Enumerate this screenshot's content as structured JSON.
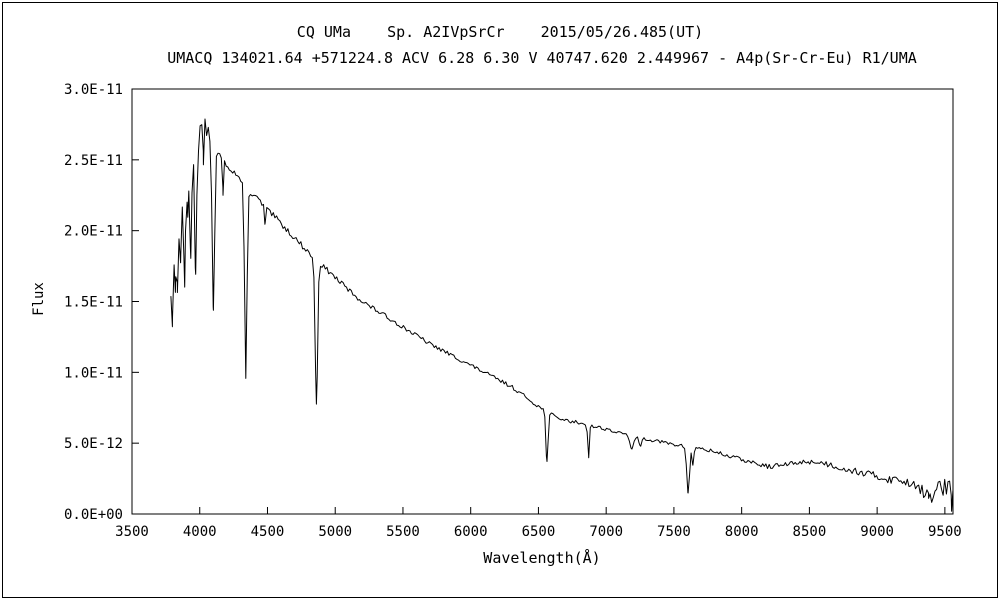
{
  "window": {
    "background": "#ffffff",
    "border_color": "#000000"
  },
  "chart_data": {
    "type": "line",
    "title": "CQ UMa    Sp. A2IVpSrCr    2015/05/26.485(UT)",
    "subtitle": "UMACQ 134021.64 +571224.8 ACV 6.28 6.30 V 40747.620 2.449967 - A4p(Sr-Cr-Eu) R1/UMA",
    "xlabel": "Wavelength(Å)",
    "ylabel": "Flux",
    "grid": false,
    "legend": false,
    "line_color": "#000000",
    "axis_color": "#000000",
    "xlim": [
      3500,
      9560
    ],
    "x_ticks": [
      3500,
      4000,
      4500,
      5000,
      5500,
      6000,
      6500,
      7000,
      7500,
      8000,
      8500,
      9000,
      9500
    ],
    "flux_value_unit": "1e-12",
    "ylim": [
      0,
      30
    ],
    "y_ticks": [
      {
        "value": 0,
        "label": "0.0E+00"
      },
      {
        "value": 5,
        "label": "5.0E-12"
      },
      {
        "value": 10,
        "label": "1.0E-11"
      },
      {
        "value": 15,
        "label": "1.5E-11"
      },
      {
        "value": 20,
        "label": "2.0E-11"
      },
      {
        "value": 25,
        "label": "2.5E-11"
      },
      {
        "value": 30,
        "label": "3.0E-11"
      }
    ],
    "wavelength_range": [
      3787,
      9560
    ],
    "sample_step": 12,
    "noise_seed": 13,
    "continuum": [
      [
        3787,
        16.2
      ],
      [
        3810,
        18.5
      ],
      [
        3840,
        20.0
      ],
      [
        3870,
        21.5
      ],
      [
        3900,
        23.0
      ],
      [
        3930,
        24.0
      ],
      [
        3960,
        25.0
      ],
      [
        3990,
        26.5
      ],
      [
        4020,
        27.6
      ],
      [
        4050,
        27.2
      ],
      [
        4100,
        26.2
      ],
      [
        4150,
        25.2
      ],
      [
        4200,
        24.7
      ],
      [
        4250,
        24.2
      ],
      [
        4300,
        23.6
      ],
      [
        4350,
        23.0
      ],
      [
        4400,
        22.5
      ],
      [
        4450,
        22.0
      ],
      [
        4500,
        21.4
      ],
      [
        4550,
        21.0
      ],
      [
        4600,
        20.5
      ],
      [
        4650,
        20.0
      ],
      [
        4700,
        19.5
      ],
      [
        4750,
        19.0
      ],
      [
        4800,
        18.5
      ],
      [
        4860,
        17.9
      ],
      [
        4920,
        17.4
      ],
      [
        5000,
        16.7
      ],
      [
        5100,
        15.8
      ],
      [
        5200,
        15.0
      ],
      [
        5300,
        14.4
      ],
      [
        5400,
        13.8
      ],
      [
        5500,
        13.2
      ],
      [
        5600,
        12.6
      ],
      [
        5700,
        12.0
      ],
      [
        5800,
        11.5
      ],
      [
        5900,
        11.0
      ],
      [
        6000,
        10.5
      ],
      [
        6100,
        10.0
      ],
      [
        6200,
        9.5
      ],
      [
        6300,
        9.0
      ],
      [
        6400,
        8.3
      ],
      [
        6500,
        7.6
      ],
      [
        6560,
        7.2
      ],
      [
        6620,
        6.9
      ],
      [
        6700,
        6.6
      ],
      [
        6800,
        6.45
      ],
      [
        6900,
        6.2
      ],
      [
        7000,
        6.0
      ],
      [
        7100,
        5.7
      ],
      [
        7200,
        5.5
      ],
      [
        7300,
        5.3
      ],
      [
        7400,
        5.1
      ],
      [
        7500,
        4.9
      ],
      [
        7600,
        4.75
      ],
      [
        7700,
        4.6
      ],
      [
        7800,
        4.4
      ],
      [
        7900,
        4.1
      ],
      [
        8000,
        3.85
      ],
      [
        8100,
        3.55
      ],
      [
        8200,
        3.35
      ],
      [
        8300,
        3.45
      ],
      [
        8400,
        3.6
      ],
      [
        8500,
        3.7
      ],
      [
        8600,
        3.6
      ],
      [
        8700,
        3.35
      ],
      [
        8800,
        3.1
      ],
      [
        8900,
        2.9
      ],
      [
        9000,
        2.65
      ],
      [
        9100,
        2.45
      ],
      [
        9200,
        2.3
      ],
      [
        9300,
        2.15
      ],
      [
        9400,
        2.05
      ],
      [
        9500,
        1.9
      ],
      [
        9560,
        1.6
      ]
    ],
    "absorption_lines": [
      {
        "center": 3798,
        "sigma": 5,
        "depth": 4.0
      },
      {
        "center": 3820,
        "sigma": 4,
        "depth": 2.5
      },
      {
        "center": 3835,
        "sigma": 5,
        "depth": 4.2
      },
      {
        "center": 3860,
        "sigma": 4,
        "depth": 3.0
      },
      {
        "center": 3889,
        "sigma": 6,
        "depth": 6.0
      },
      {
        "center": 3912,
        "sigma": 4,
        "depth": 2.8
      },
      {
        "center": 3934,
        "sigma": 6,
        "depth": 5.5
      },
      {
        "center": 3970,
        "sigma": 7,
        "depth": 8.0
      },
      {
        "center": 4026,
        "sigma": 4,
        "depth": 2.5
      },
      {
        "center": 4101,
        "sigma": 9,
        "depth": 12.0
      },
      {
        "center": 4172,
        "sigma": 5,
        "depth": 2.2
      },
      {
        "center": 4340,
        "sigma": 9,
        "depth": 13.3
      },
      {
        "center": 4481,
        "sigma": 4,
        "depth": 1.2
      },
      {
        "center": 4861,
        "sigma": 9,
        "depth": 10.0
      },
      {
        "center": 6563,
        "sigma": 8,
        "depth": 3.4
      },
      {
        "center": 6870,
        "sigma": 6,
        "depth": 2.2
      },
      {
        "center": 7190,
        "sigma": 12,
        "depth": 1.0
      },
      {
        "center": 7250,
        "sigma": 10,
        "depth": 0.6
      },
      {
        "center": 7605,
        "sigma": 10,
        "depth": 3.3
      },
      {
        "center": 7640,
        "sigma": 6,
        "depth": 1.2
      },
      {
        "center": 9380,
        "sigma": 40,
        "depth": 0.9
      },
      {
        "center": 9550,
        "sigma": 8,
        "depth": 1.0
      }
    ],
    "noise_profile": [
      [
        3787,
        0.9
      ],
      [
        3980,
        0.9
      ],
      [
        4060,
        0.45
      ],
      [
        4200,
        0.28
      ],
      [
        4500,
        0.22
      ],
      [
        5000,
        0.18
      ],
      [
        5500,
        0.15
      ],
      [
        6000,
        0.14
      ],
      [
        6500,
        0.13
      ],
      [
        7000,
        0.13
      ],
      [
        7600,
        0.12
      ],
      [
        8000,
        0.15
      ],
      [
        8500,
        0.18
      ],
      [
        8900,
        0.25
      ],
      [
        9200,
        0.35
      ],
      [
        9400,
        0.5
      ],
      [
        9560,
        0.9
      ]
    ]
  }
}
